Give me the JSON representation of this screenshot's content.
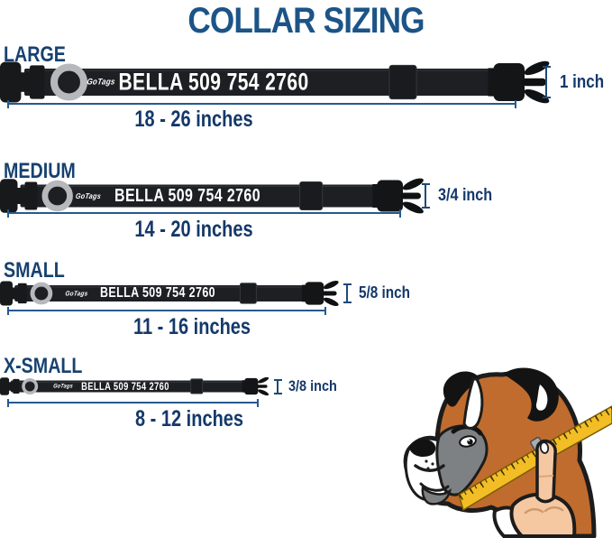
{
  "title": "COLLAR SIZING",
  "collar": {
    "brand": "GoTags",
    "tag_text": "BELLA 509 754 2760"
  },
  "sizes": [
    {
      "label": "LARGE",
      "range": "18 - 26 inches",
      "strap_width": "1 inch"
    },
    {
      "label": "MEDIUM",
      "range": "14 - 20 inches",
      "strap_width": "3/4 inch"
    },
    {
      "label": "SMALL",
      "range": "11 - 16 inches",
      "strap_width": "5/8 inch"
    },
    {
      "label": "X-SMALL",
      "range": "8 - 12 inches",
      "strap_width": "3/8 inch"
    }
  ],
  "illustration_alt": "Boxer dog head with a yellow measuring tape wrapped around its neck, held by a hand",
  "colors": {
    "heading_blue": "#1c5487",
    "label_navy": "#17416f",
    "measure_navy": "#14386b",
    "line_blue": "#265a90",
    "collar_black": "#1d1f23",
    "ring_gray": "#b6b8bb",
    "tape_yellow": "#f3be25",
    "dog_brown": "#c06c2e",
    "hand_skin": "#f6c8a2"
  }
}
